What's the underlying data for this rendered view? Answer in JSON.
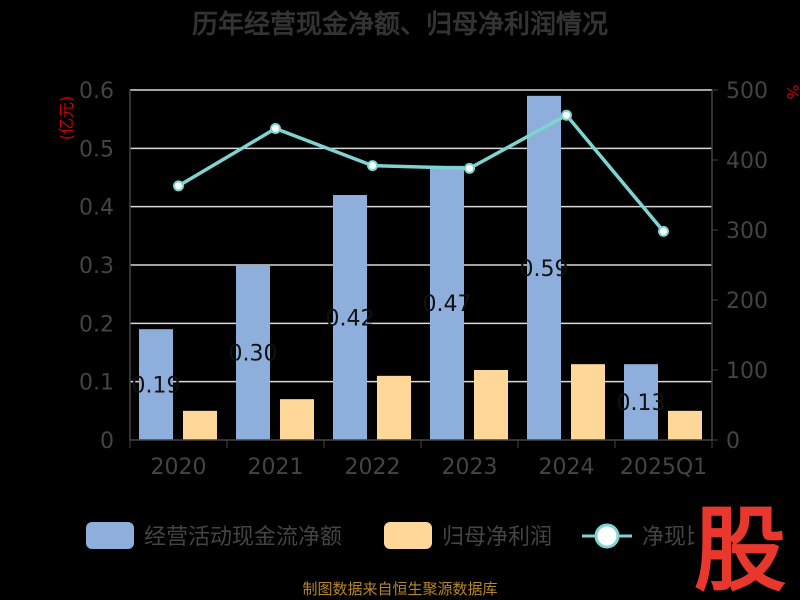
{
  "title": "历年经营现金净额、归母净利润情况",
  "source": "制图数据来自恒生聚源数据库",
  "logo": "股",
  "colors": {
    "bar_cash": "#8eaedc",
    "bar_profit": "#ffd899",
    "line": "#7fd3d0",
    "unit": "#cc0000",
    "tick": "#444444",
    "grid": "#d9d9d9",
    "source": "#b8862a",
    "logo": "#e8372c"
  },
  "chart_data": {
    "type": "bar",
    "categories": [
      "2020",
      "2021",
      "2022",
      "2023",
      "2024",
      "2025Q1"
    ],
    "series": [
      {
        "name": "经营活动现金流净额",
        "type": "bar",
        "axis": "left",
        "values": [
          0.19,
          0.3,
          0.42,
          0.47,
          0.59,
          0.13
        ]
      },
      {
        "name": "归母净利润",
        "type": "bar",
        "axis": "left",
        "values": [
          0.05,
          0.07,
          0.11,
          0.12,
          0.13,
          0.05
        ]
      },
      {
        "name": "净现比",
        "type": "line",
        "axis": "right",
        "values": [
          363,
          445,
          392,
          388,
          464,
          298
        ]
      }
    ],
    "data_labels": [
      "0.19",
      "0.30",
      "0.42",
      "0.47",
      "0.59",
      "0.13"
    ],
    "left_axis": {
      "unit": "(亿元)",
      "min": 0,
      "max": 0.6,
      "ticks": [
        "0",
        "0.1",
        "0.2",
        "0.3",
        "0.4",
        "0.5",
        "0.6"
      ]
    },
    "right_axis": {
      "unit": "%",
      "min": 0,
      "max": 500,
      "ticks": [
        "0",
        "100",
        "200",
        "300",
        "400",
        "500"
      ]
    },
    "legend_position": "bottom",
    "grid": true
  }
}
